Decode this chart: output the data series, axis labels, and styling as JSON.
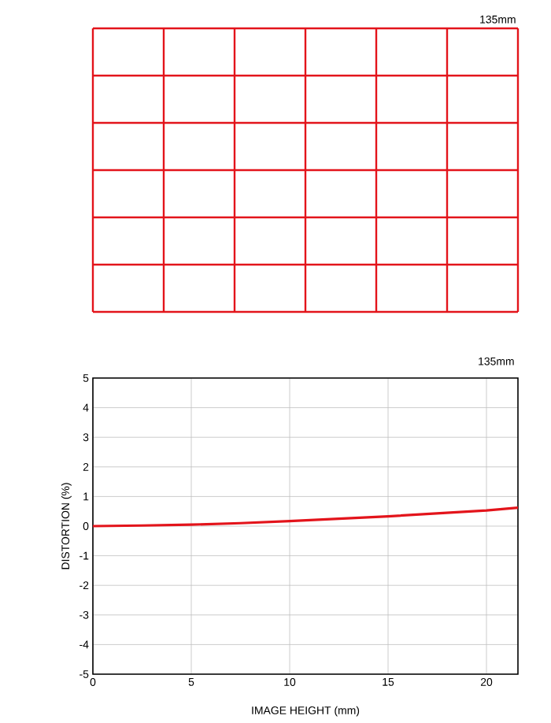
{
  "chart_data": {
    "type": "line",
    "title": "135mm",
    "xlabel": "IMAGE HEIGHT (mm)",
    "ylabel": "DISTORTION (%)",
    "annotations": [
      "135mm"
    ],
    "x": [
      0,
      2.5,
      5,
      7.5,
      10,
      12.5,
      15,
      17.5,
      20,
      21.6
    ],
    "series": [
      {
        "color": "#e3141b",
        "values": [
          0,
          0.02,
          0.05,
          0.1,
          0.17,
          0.25,
          0.33,
          0.43,
          0.53,
          0.62
        ]
      }
    ],
    "xlim": [
      0,
      21.6
    ],
    "ylim": [
      -5,
      5
    ],
    "xticks": [
      0,
      5,
      10,
      15,
      20
    ],
    "yticks": [
      -5,
      -4,
      -3,
      -2,
      -1,
      0,
      1,
      2,
      3,
      4,
      5
    ],
    "grid": true,
    "marker": "none",
    "line_style": "solid"
  }
}
